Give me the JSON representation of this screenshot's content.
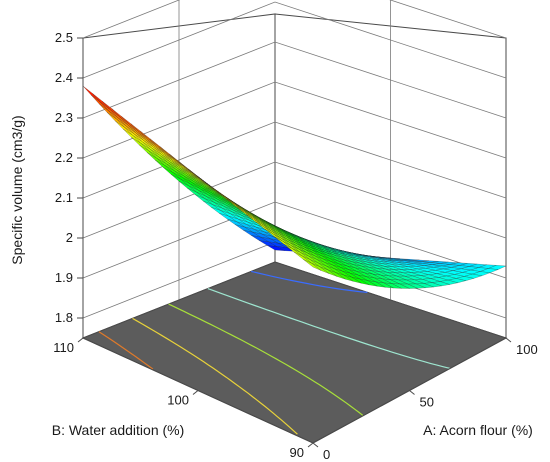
{
  "chart_data": {
    "type": "surface",
    "z_label": "Specific volume (cm3/g)",
    "a_label": "A: Acorn flour (%)",
    "b_label": "B: Water addition (%)",
    "z_ticks": [
      "1.8",
      "1.9",
      "2",
      "2.1",
      "2.2",
      "2.3",
      "2.4",
      "2.5"
    ],
    "z_range": [
      1.75,
      2.5
    ],
    "a_ticks": [
      "0",
      "50",
      "100"
    ],
    "a_range": [
      0,
      100
    ],
    "b_ticks": [
      "90",
      "100",
      "110"
    ],
    "b_range": [
      90,
      110
    ],
    "surface_corners": [
      {
        "acorn_flour": 0,
        "water_addition": 110,
        "specific_volume": 2.38
      },
      {
        "acorn_flour": 0,
        "water_addition": 90,
        "specific_volume": 2.19
      },
      {
        "acorn_flour": 100,
        "water_addition": 90,
        "specific_volume": 1.93
      },
      {
        "acorn_flour": 100,
        "water_addition": 110,
        "specific_volume": 1.78
      }
    ],
    "colormap": [
      "#ff0000",
      "#ffff00",
      "#00ff00",
      "#00ffff",
      "#0000ff"
    ],
    "floor_color": "#5c5c5c",
    "contour_colors": [
      "#e07a2a",
      "#e8d23a",
      "#a8e03a",
      "#9ee6d0",
      "#3a6cff"
    ]
  }
}
